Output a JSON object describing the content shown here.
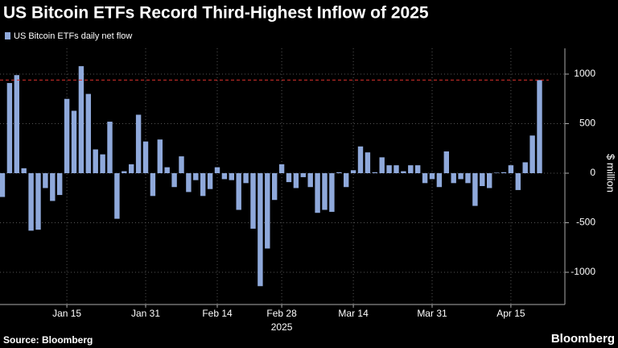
{
  "chart_data": {
    "type": "bar",
    "title": "US Bitcoin ETFs Record Third-Highest Inflow of 2025",
    "series": [
      {
        "name": "US Bitcoin ETFs daily net flow",
        "color": "#8fa9db",
        "values": [
          -240,
          910,
          990,
          50,
          -580,
          -570,
          -150,
          -280,
          -220,
          750,
          630,
          1080,
          800,
          240,
          190,
          520,
          -460,
          20,
          90,
          590,
          320,
          -230,
          340,
          60,
          -140,
          170,
          -190,
          -70,
          -230,
          -160,
          60,
          -60,
          -70,
          -370,
          -100,
          -560,
          -1140,
          -760,
          -270,
          90,
          -90,
          -150,
          -40,
          -140,
          -400,
          -370,
          -390,
          10,
          -140,
          30,
          270,
          210,
          10,
          160,
          80,
          80,
          20,
          80,
          80,
          -100,
          -60,
          -140,
          220,
          -100,
          -60,
          -100,
          -330,
          -130,
          -150,
          5,
          10,
          80,
          -170,
          110,
          380,
          940
        ]
      }
    ],
    "categories": [
      null,
      null,
      null,
      null,
      null,
      null,
      null,
      null,
      null,
      "Jan 15",
      null,
      null,
      null,
      null,
      null,
      null,
      null,
      null,
      null,
      null,
      "Jan 31",
      null,
      null,
      null,
      null,
      null,
      null,
      null,
      null,
      null,
      "Feb 14",
      null,
      null,
      null,
      null,
      null,
      null,
      null,
      null,
      "Feb 28",
      null,
      null,
      null,
      null,
      null,
      null,
      null,
      null,
      null,
      "Mar 14",
      null,
      null,
      null,
      null,
      null,
      null,
      null,
      null,
      null,
      null,
      "Mar 31",
      null,
      null,
      null,
      null,
      null,
      null,
      null,
      null,
      null,
      null,
      "Apr 15",
      null,
      null,
      null,
      null
    ],
    "year_label": "2025",
    "y_axis_label": "$ million",
    "ylim": [
      -1325,
      1260
    ],
    "yticks": [
      -1000,
      -500,
      0,
      500,
      1000
    ],
    "reference_line": 940,
    "reference_color": "#d9302c",
    "grid": true,
    "source": "Source: Bloomberg",
    "brand": "Bloomberg"
  }
}
